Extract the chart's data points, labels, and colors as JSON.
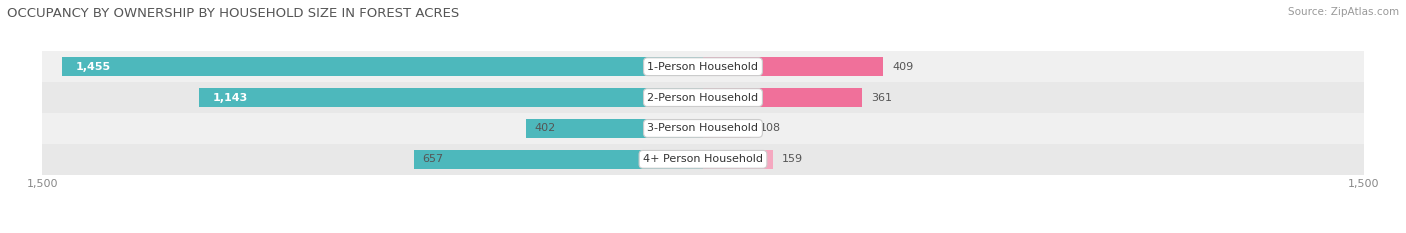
{
  "title": "OCCUPANCY BY OWNERSHIP BY HOUSEHOLD SIZE IN FOREST ACRES",
  "source": "Source: ZipAtlas.com",
  "categories": [
    "1-Person Household",
    "2-Person Household",
    "3-Person Household",
    "4+ Person Household"
  ],
  "owner_values": [
    1455,
    1143,
    402,
    657
  ],
  "renter_values": [
    409,
    361,
    108,
    159
  ],
  "max_axis": 1500,
  "owner_color": "#4db8bc",
  "renter_colors": [
    "#f0709a",
    "#f0709a",
    "#f5a8c0",
    "#f5a8c0"
  ],
  "row_bg_colors": [
    "#f0f0f0",
    "#e8e8e8"
  ],
  "title_fontsize": 9.5,
  "axis_fontsize": 8,
  "bar_label_fontsize": 8,
  "cat_label_fontsize": 8,
  "legend_fontsize": 8,
  "source_fontsize": 7.5
}
